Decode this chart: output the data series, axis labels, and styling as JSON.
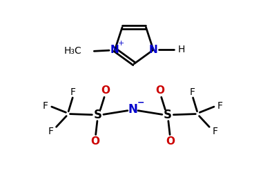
{
  "bg_color": "#ffffff",
  "black": "#000000",
  "blue": "#0000cc",
  "red": "#cc0000",
  "line_width": 2.0,
  "figsize": [
    3.81,
    2.47
  ],
  "dpi": 100,
  "xlim": [
    0,
    10
  ],
  "ylim": [
    0,
    6.5
  ]
}
